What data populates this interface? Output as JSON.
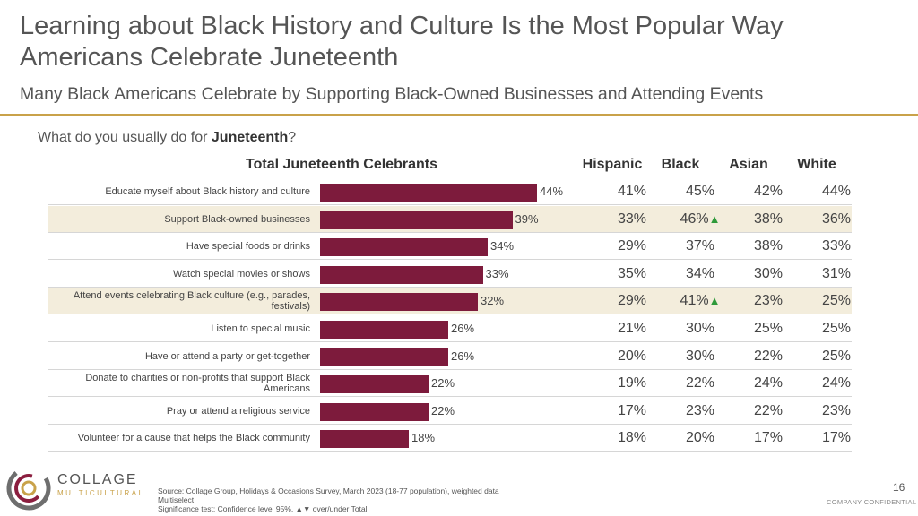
{
  "title": "Learning about Black History and Culture Is the Most Popular Way Americans Celebrate Juneteenth",
  "subtitle": "Many Black Americans Celebrate by Supporting Black-Owned Businesses and Attending Events",
  "question_prefix": "What do you usually do for ",
  "question_bold": "Juneteenth",
  "question_suffix": "?",
  "colors": {
    "bar": "#7d1b3c",
    "rule": "#c9a24a",
    "highlight": "#f3eddc",
    "sig_up": "#2e9a3a",
    "sig_down": "#c0392b"
  },
  "chart_data": {
    "type": "bar",
    "orientation": "horizontal",
    "series_name": "Total Juneteenth Celebrants",
    "xlim": [
      0,
      100
    ],
    "categories": [
      "Educate myself about Black history and culture",
      "Support Black-owned businesses",
      "Have special foods or drinks",
      "Watch special movies or shows",
      "Attend events celebrating Black culture (e.g., parades, festivals)",
      "Listen to special music",
      "Have or attend a party or get-together",
      "Donate to charities or non-profits that support Black Americans",
      "Pray or attend a religious service",
      "Volunteer for a cause that helps the Black community"
    ],
    "values": [
      44,
      39,
      34,
      33,
      32,
      26,
      26,
      22,
      22,
      18
    ],
    "value_labels": [
      "44%",
      "39%",
      "34%",
      "33%",
      "32%",
      "26%",
      "26%",
      "22%",
      "22%",
      "18%"
    ],
    "highlight_rows": [
      1,
      4
    ],
    "table": {
      "columns": [
        "Hispanic",
        "Black",
        "Asian",
        "White"
      ],
      "rows": [
        [
          "41%",
          "45%",
          "42%",
          "44%"
        ],
        [
          "33%",
          "46%",
          "38%",
          "36%"
        ],
        [
          "29%",
          "37%",
          "38%",
          "33%"
        ],
        [
          "35%",
          "34%",
          "30%",
          "31%"
        ],
        [
          "29%",
          "41%",
          "23%",
          "25%"
        ],
        [
          "21%",
          "30%",
          "25%",
          "25%"
        ],
        [
          "20%",
          "30%",
          "22%",
          "25%"
        ],
        [
          "19%",
          "22%",
          "24%",
          "24%"
        ],
        [
          "17%",
          "23%",
          "22%",
          "23%"
        ],
        [
          "18%",
          "20%",
          "17%",
          "17%"
        ]
      ],
      "significance": [
        [
          null,
          null,
          null,
          null
        ],
        [
          null,
          "up",
          null,
          null
        ],
        [
          null,
          null,
          null,
          null
        ],
        [
          null,
          null,
          null,
          null
        ],
        [
          null,
          "up",
          null,
          null
        ],
        [
          null,
          null,
          null,
          null
        ],
        [
          null,
          null,
          null,
          null
        ],
        [
          null,
          null,
          null,
          null
        ],
        [
          null,
          null,
          null,
          null
        ],
        [
          null,
          null,
          null,
          null
        ]
      ]
    }
  },
  "logo": {
    "line1": "COLLAGE",
    "line2": "MULTICULTURAL"
  },
  "source_lines": [
    "Source: Collage Group, Holidays & Occasions Survey, March 2023 (18-77 population), weighted data",
    "Multiselect",
    "Significance test: Confidence level 95%. ▲▼ over/under Total"
  ],
  "page_number": "16",
  "confidential": "COMPANY CONFIDENTIAL"
}
